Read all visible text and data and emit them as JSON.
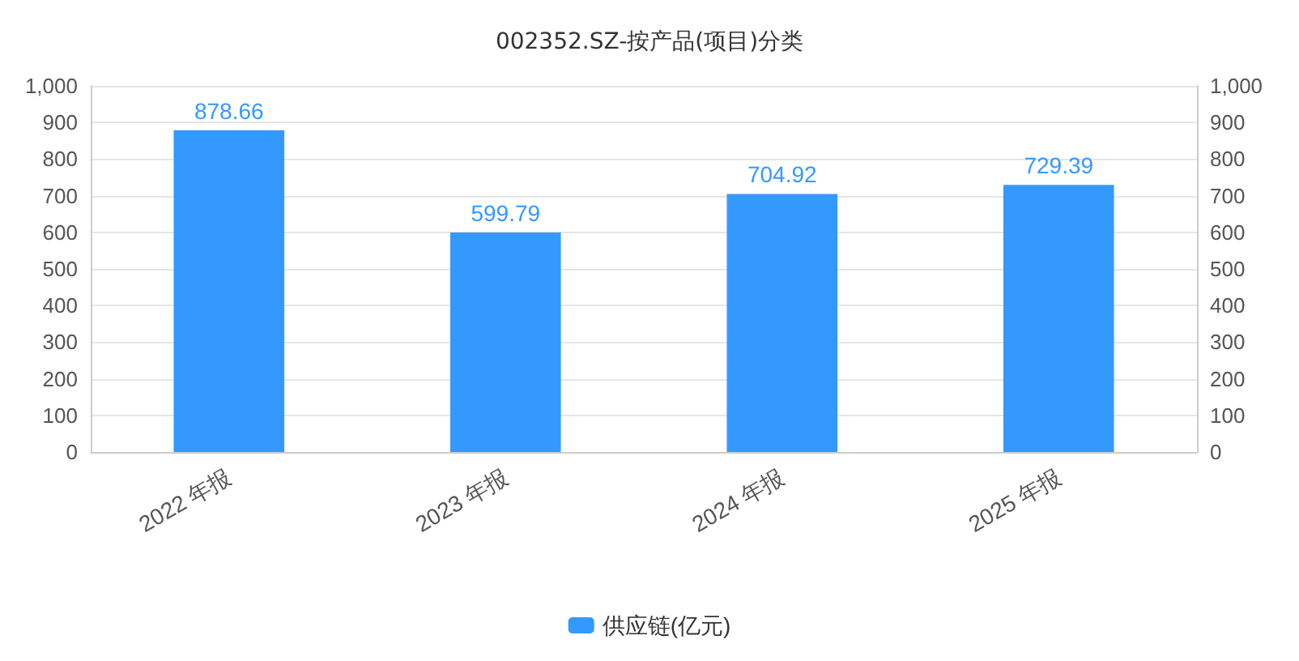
{
  "chart_data": {
    "type": "bar",
    "title": "002352.SZ-按产品(项目)分类",
    "categories": [
      "2022 年报",
      "2023 年报",
      "2024 年报",
      "2025 年报"
    ],
    "series": [
      {
        "name": "供应链(亿元)",
        "color": "#3399ff",
        "values": [
          878.66,
          599.79,
          704.92,
          729.39
        ]
      }
    ],
    "ylim": [
      0,
      1000
    ],
    "yticks": [
      0,
      100,
      200,
      300,
      400,
      500,
      600,
      700,
      800,
      900,
      {
        "value": 1000,
        "label": "1,000"
      }
    ],
    "y2lim": [
      0,
      1000
    ],
    "y2ticks": [
      0,
      100,
      200,
      300,
      400,
      500,
      600,
      700,
      800,
      900,
      {
        "value": 1000,
        "label": "1,000"
      }
    ],
    "data_labels": true,
    "grid": "y",
    "legend": "bottom"
  }
}
